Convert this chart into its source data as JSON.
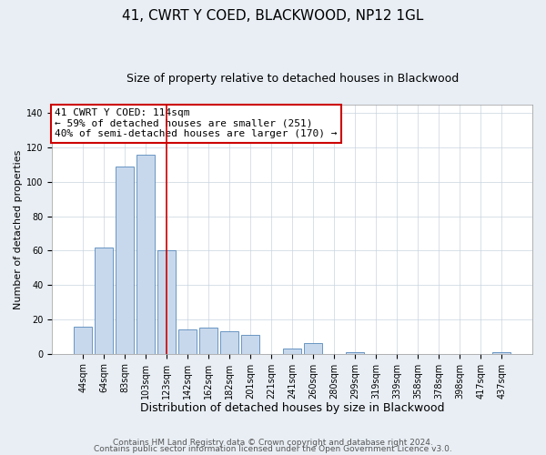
{
  "title": "41, CWRT Y COED, BLACKWOOD, NP12 1GL",
  "subtitle": "Size of property relative to detached houses in Blackwood",
  "xlabel": "Distribution of detached houses by size in Blackwood",
  "ylabel": "Number of detached properties",
  "categories": [
    "44sqm",
    "64sqm",
    "83sqm",
    "103sqm",
    "123sqm",
    "142sqm",
    "162sqm",
    "182sqm",
    "201sqm",
    "221sqm",
    "241sqm",
    "260sqm",
    "280sqm",
    "299sqm",
    "319sqm",
    "339sqm",
    "358sqm",
    "378sqm",
    "398sqm",
    "417sqm",
    "437sqm"
  ],
  "values": [
    16,
    62,
    109,
    116,
    60,
    14,
    15,
    13,
    11,
    0,
    3,
    6,
    0,
    1,
    0,
    0,
    0,
    0,
    0,
    0,
    1
  ],
  "bar_color": "#c8d8ec",
  "bar_edge_color": "#5588bb",
  "highlight_bar_index": 4,
  "highlight_line_color": "#cc0000",
  "annotation_text": "41 CWRT Y COED: 114sqm\n← 59% of detached houses are smaller (251)\n40% of semi-detached houses are larger (170) →",
  "annotation_box_edge": "#cc0000",
  "annotation_box_face": "#ffffff",
  "ylim": [
    0,
    145
  ],
  "yticks": [
    0,
    20,
    40,
    60,
    80,
    100,
    120,
    140
  ],
  "footer_line1": "Contains HM Land Registry data © Crown copyright and database right 2024.",
  "footer_line2": "Contains public sector information licensed under the Open Government Licence v3.0.",
  "background_color": "#e8eef4",
  "plot_bg_color": "#ffffff",
  "title_fontsize": 11,
  "subtitle_fontsize": 9,
  "xlabel_fontsize": 9,
  "ylabel_fontsize": 8,
  "tick_fontsize": 7,
  "annotation_fontsize": 8,
  "footer_fontsize": 6.5
}
